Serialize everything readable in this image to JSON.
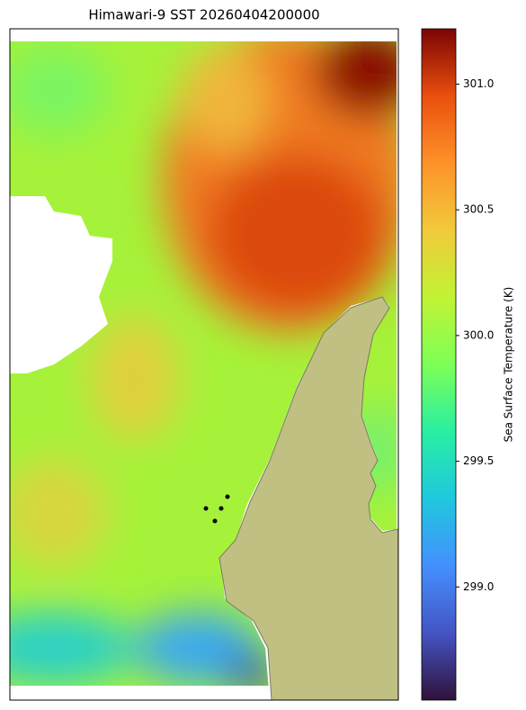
{
  "chart_data": {
    "type": "heatmap",
    "title": "Himawari-9 SST 20260404200000",
    "colorbar_label": "Sea Surface Temperature (K)",
    "clim": [
      298.55,
      301.22
    ],
    "colorbar_ticks": [
      {
        "value": 299,
        "label": "299.0"
      },
      {
        "value": 299.5,
        "label": "299.5"
      },
      {
        "value": 300,
        "label": "300.0"
      },
      {
        "value": 300.5,
        "label": "300.5"
      },
      {
        "value": 301,
        "label": "301.0"
      }
    ]
  }
}
